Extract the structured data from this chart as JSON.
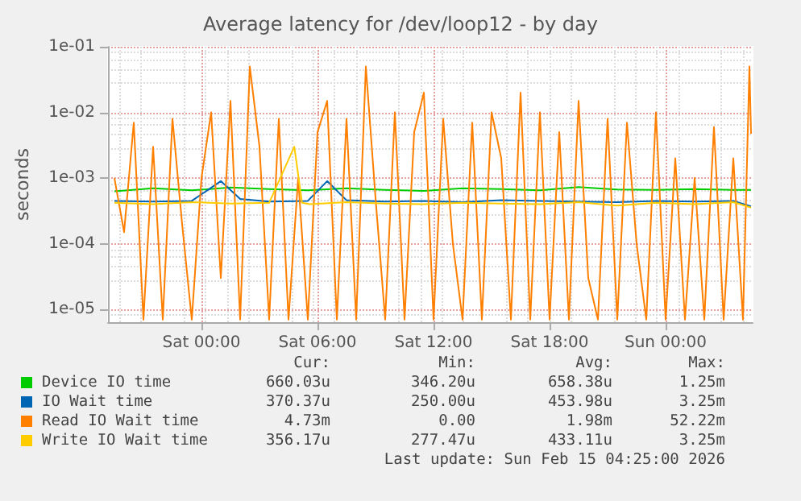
{
  "chart_data": {
    "type": "line",
    "title": "Average latency for /dev/loop12 - by day",
    "ylabel": "seconds",
    "log": "y",
    "grid": true,
    "legend": "bottom",
    "marker": "none",
    "xlim": [
      "2026-02-13T19:10",
      "2026-02-15T04:30"
    ],
    "xticks": [
      {
        "value": "2026-02-14T00:00",
        "label": "Sat 00:00"
      },
      {
        "value": "2026-02-14T06:00",
        "label": "Sat 06:00"
      },
      {
        "value": "2026-02-14T12:00",
        "label": "Sat 12:00"
      },
      {
        "value": "2026-02-14T18:00",
        "label": "Sat 18:00"
      },
      {
        "value": "2026-02-15T00:00",
        "label": "Sun 00:00"
      }
    ],
    "ylim": [
      6.4e-06,
      0.1
    ],
    "yticks": [
      {
        "value": 1e-05,
        "label": "1e-05"
      },
      {
        "value": 0.0001,
        "label": "1e-04"
      },
      {
        "value": 0.001,
        "label": "1e-03"
      },
      {
        "value": 0.01,
        "label": "1e-02"
      },
      {
        "value": 0.1,
        "label": "1e-01"
      }
    ],
    "series": [
      {
        "name": "Device IO time",
        "color": "#00cc00",
        "x": [
          "2026-02-13T19:30",
          "2026-02-13T21:30",
          "2026-02-13T23:30",
          "2026-02-14T01:30",
          "2026-02-14T03:30",
          "2026-02-14T05:30",
          "2026-02-14T07:30",
          "2026-02-14T09:30",
          "2026-02-14T11:30",
          "2026-02-14T13:30",
          "2026-02-14T15:30",
          "2026-02-14T17:30",
          "2026-02-14T19:30",
          "2026-02-14T21:30",
          "2026-02-14T23:30",
          "2026-02-15T01:30",
          "2026-02-15T03:30",
          "2026-02-15T04:25"
        ],
        "values": [
          0.00063,
          0.0007,
          0.00065,
          0.00072,
          0.00068,
          0.00065,
          0.0007,
          0.00066,
          0.00064,
          0.0007,
          0.00068,
          0.00065,
          0.00073,
          0.00067,
          0.00066,
          0.00068,
          0.00066,
          0.00066
        ]
      },
      {
        "name": "IO Wait time",
        "color": "#0066b3",
        "x": [
          "2026-02-13T19:30",
          "2026-02-13T21:30",
          "2026-02-13T23:30",
          "2026-02-14T01:00",
          "2026-02-14T02:00",
          "2026-02-14T03:30",
          "2026-02-14T05:30",
          "2026-02-14T06:30",
          "2026-02-14T07:30",
          "2026-02-14T09:30",
          "2026-02-14T11:30",
          "2026-02-14T13:30",
          "2026-02-14T15:30",
          "2026-02-14T17:30",
          "2026-02-14T19:30",
          "2026-02-14T21:30",
          "2026-02-14T23:30",
          "2026-02-15T01:30",
          "2026-02-15T03:30",
          "2026-02-15T04:25"
        ],
        "values": [
          0.00045,
          0.00044,
          0.00045,
          0.0009,
          0.00048,
          0.00044,
          0.00045,
          0.0009,
          0.00046,
          0.00044,
          0.00045,
          0.00043,
          0.00046,
          0.00045,
          0.00044,
          0.00043,
          0.00045,
          0.00044,
          0.00045,
          0.00037
        ]
      },
      {
        "name": "Read IO Wait time",
        "color": "#ff8000",
        "x": [
          "2026-02-13T19:30",
          "2026-02-13T20:00",
          "2026-02-13T20:30",
          "2026-02-13T21:00",
          "2026-02-13T21:30",
          "2026-02-13T22:00",
          "2026-02-13T22:30",
          "2026-02-13T23:00",
          "2026-02-13T23:30",
          "2026-02-14T00:00",
          "2026-02-14T00:30",
          "2026-02-14T01:00",
          "2026-02-14T01:30",
          "2026-02-14T02:00",
          "2026-02-14T02:30",
          "2026-02-14T03:00",
          "2026-02-14T03:30",
          "2026-02-14T04:00",
          "2026-02-14T04:30",
          "2026-02-14T05:00",
          "2026-02-14T05:30",
          "2026-02-14T06:00",
          "2026-02-14T06:30",
          "2026-02-14T07:00",
          "2026-02-14T07:30",
          "2026-02-14T08:00",
          "2026-02-14T08:30",
          "2026-02-14T09:00",
          "2026-02-14T09:30",
          "2026-02-14T10:00",
          "2026-02-14T10:30",
          "2026-02-14T11:00",
          "2026-02-14T11:30",
          "2026-02-14T12:00",
          "2026-02-14T12:30",
          "2026-02-14T13:00",
          "2026-02-14T13:30",
          "2026-02-14T14:00",
          "2026-02-14T14:30",
          "2026-02-14T15:00",
          "2026-02-14T15:30",
          "2026-02-14T16:00",
          "2026-02-14T16:30",
          "2026-02-14T17:00",
          "2026-02-14T17:30",
          "2026-02-14T18:00",
          "2026-02-14T18:30",
          "2026-02-14T19:00",
          "2026-02-14T19:30",
          "2026-02-14T20:00",
          "2026-02-14T20:30",
          "2026-02-14T21:00",
          "2026-02-14T21:30",
          "2026-02-14T22:00",
          "2026-02-14T22:30",
          "2026-02-14T23:00",
          "2026-02-14T23:30",
          "2026-02-15T00:00",
          "2026-02-15T00:30",
          "2026-02-15T01:00",
          "2026-02-15T01:30",
          "2026-02-15T02:00",
          "2026-02-15T02:30",
          "2026-02-15T03:00",
          "2026-02-15T03:30",
          "2026-02-15T04:00",
          "2026-02-15T04:20",
          "2026-02-15T04:25"
        ],
        "values": [
          0.001,
          0.00015,
          0.007,
          7e-06,
          0.003,
          7e-06,
          0.008,
          0.0002,
          7e-06,
          0.001,
          0.01,
          3e-05,
          0.015,
          7e-06,
          0.05,
          0.003,
          7e-06,
          0.008,
          7e-06,
          0.001,
          7e-06,
          0.005,
          0.015,
          7e-06,
          0.008,
          7e-06,
          0.05,
          0.0005,
          7e-06,
          0.01,
          7e-06,
          0.005,
          0.02,
          7e-06,
          0.008,
          0.0001,
          7e-06,
          0.007,
          7e-06,
          0.01,
          0.002,
          7e-06,
          0.02,
          7e-06,
          0.01,
          7e-06,
          0.005,
          7e-06,
          0.015,
          3e-05,
          7e-06,
          0.008,
          7e-06,
          0.007,
          0.0001,
          7e-06,
          0.01,
          7e-06,
          0.002,
          7e-06,
          0.001,
          7e-06,
          0.006,
          7e-06,
          0.002,
          7e-06,
          0.05,
          0.00473
        ]
      },
      {
        "name": "Write IO Wait time",
        "color": "#ffcc00",
        "x": [
          "2026-02-13T19:30",
          "2026-02-13T21:30",
          "2026-02-13T23:30",
          "2026-02-14T01:30",
          "2026-02-14T03:30",
          "2026-02-14T04:48",
          "2026-02-14T05:12",
          "2026-02-14T05:36",
          "2026-02-14T07:30",
          "2026-02-14T09:30",
          "2026-02-14T11:30",
          "2026-02-14T13:30",
          "2026-02-14T15:30",
          "2026-02-14T17:30",
          "2026-02-14T19:30",
          "2026-02-14T21:30",
          "2026-02-14T23:30",
          "2026-02-15T01:30",
          "2026-02-15T03:30",
          "2026-02-15T04:25"
        ],
        "values": [
          0.00042,
          0.0004,
          0.00043,
          0.00041,
          0.00042,
          0.003,
          0.00042,
          0.0004,
          0.00043,
          0.00041,
          0.0004,
          0.00042,
          0.00041,
          0.0004,
          0.00043,
          0.00038,
          0.00042,
          0.0004,
          0.00043,
          0.000356
        ]
      }
    ],
    "annotations": [
      "Cur:",
      "Min:",
      "Avg:",
      "Max:",
      "660.03u",
      "346.20u",
      "658.38u",
      "1.25m",
      "370.37u",
      "250.00u",
      "453.98u",
      "3.25m",
      "4.73m",
      "0.00",
      "1.98m",
      "52.22m",
      "356.17u",
      "277.47u",
      "433.11u",
      "3.25m",
      "Last update: Sun Feb 15 04:25:00 2026"
    ]
  }
}
